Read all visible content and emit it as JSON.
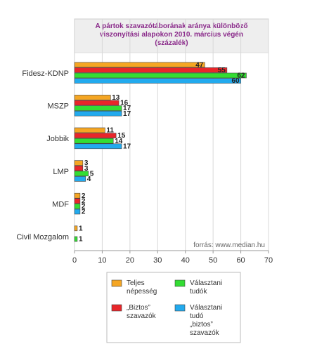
{
  "chart_data": {
    "type": "bar",
    "orientation": "horizontal",
    "title_lines": [
      "A pártok szavazótáborának aránya különböző",
      "viszonyítási alapokon 2010. március végén",
      "(százalék)"
    ],
    "source": "forrás: www.median.hu",
    "categories": [
      "Fidesz-KDNP",
      "MSZP",
      "Jobbik",
      "LMP",
      "MDF",
      "Civil Mozgalom"
    ],
    "xlim": [
      0,
      70
    ],
    "x_ticks": [
      0,
      10,
      20,
      30,
      40,
      50,
      60,
      70
    ],
    "grid": true,
    "legend_position": "bottom",
    "series": [
      {
        "name_lines": [
          "Teljes",
          "népesség"
        ],
        "color": "#f5a623",
        "values": [
          47,
          13,
          11,
          3,
          2,
          1
        ]
      },
      {
        "name_lines": [
          "„Biztos”",
          "szavazók"
        ],
        "color": "#e8262a",
        "values": [
          55,
          16,
          15,
          3,
          2,
          null
        ]
      },
      {
        "name_lines": [
          "Választani",
          "tudók"
        ],
        "color": "#33dd33",
        "values": [
          62,
          17,
          14,
          5,
          2,
          1
        ]
      },
      {
        "name_lines": [
          "Választani",
          "tudó",
          "„biztos”",
          "szavazók"
        ],
        "color": "#22aaee",
        "values": [
          60,
          17,
          17,
          4,
          2,
          null
        ]
      }
    ]
  }
}
